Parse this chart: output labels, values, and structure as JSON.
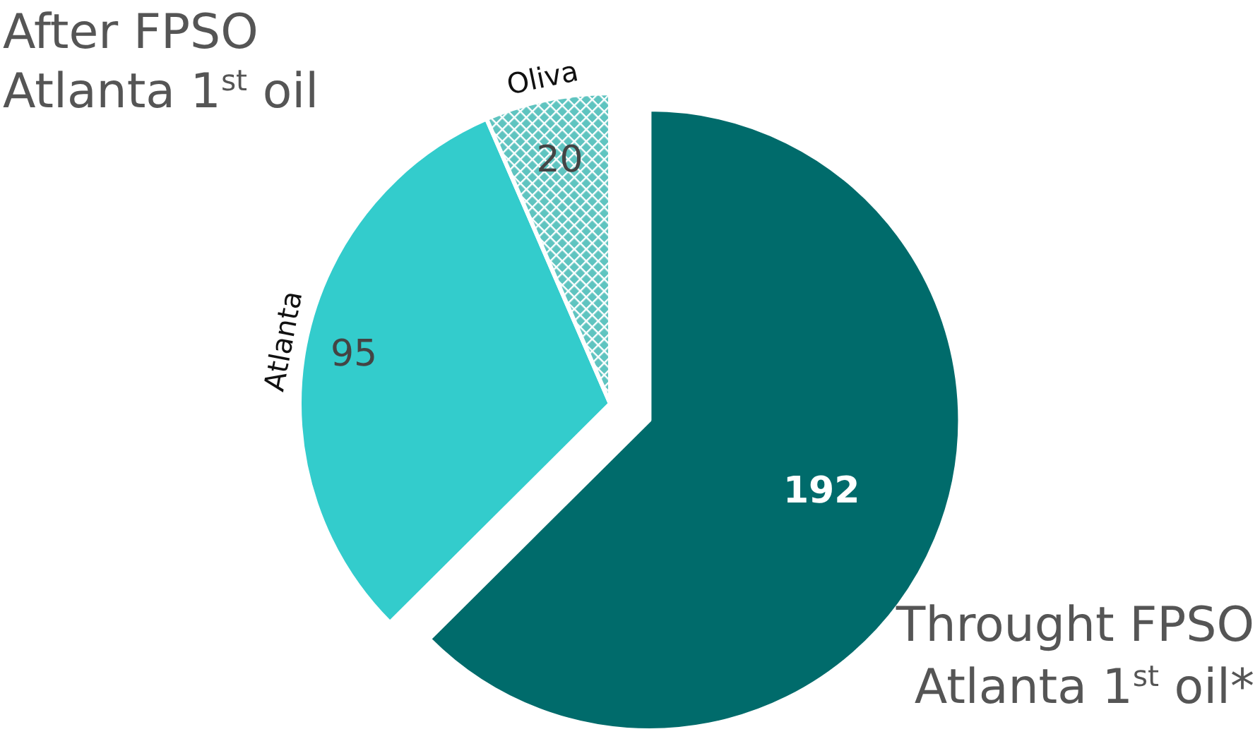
{
  "chart_data": {
    "type": "pie",
    "categories": [
      null,
      "Atlanta",
      "Oliva"
    ],
    "values": [
      192,
      95,
      20
    ],
    "colors": [
      "#006b6b",
      "#33cccc",
      "#5fc4c0"
    ],
    "data_labels": true,
    "annotations": [
      "After FPSO Atlanta 1$^{st}$ oil",
      "Throught FPSO Atlanta 1$^{st}$ oil*"
    ]
  }
}
